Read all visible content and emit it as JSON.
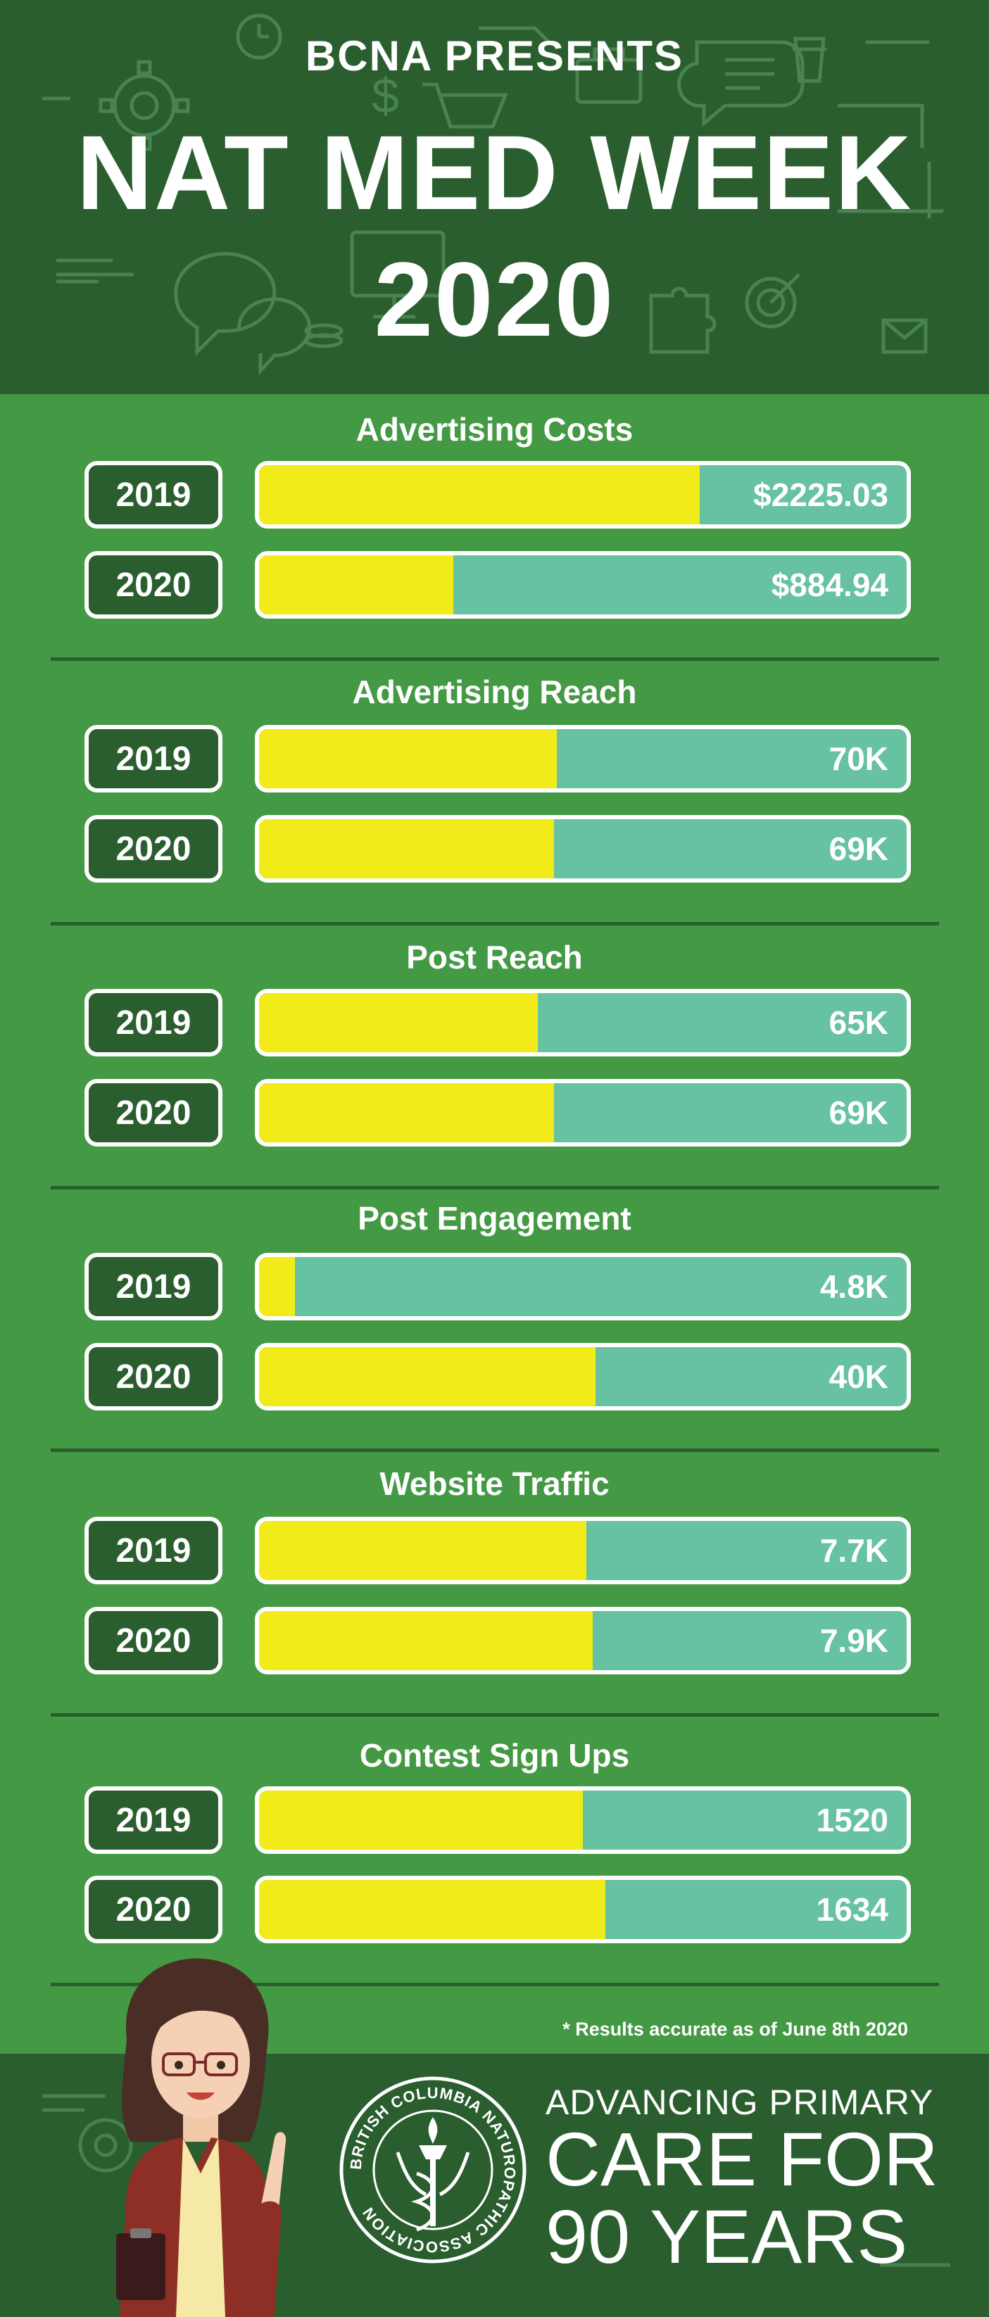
{
  "header": {
    "presents": "BCNA PRESENTS",
    "title_line1": "NAT MED WEEK",
    "title_line2": "2020"
  },
  "colors": {
    "background": "#449944",
    "dark_green": "#2a5e2f",
    "bar_fill_yellow": "#f2eb1a",
    "bar_track_teal": "#66c2a0"
  },
  "sections": [
    {
      "title": "Advertising Costs",
      "rows": [
        {
          "year": "2019",
          "label": "$2225.03",
          "fill": 0.68
        },
        {
          "year": "2020",
          "label": "$884.94",
          "fill": 0.3
        }
      ]
    },
    {
      "title": "Advertising Reach",
      "rows": [
        {
          "year": "2019",
          "label": "70K",
          "fill": 0.46
        },
        {
          "year": "2020",
          "label": "69K",
          "fill": 0.455
        }
      ]
    },
    {
      "title": "Post Reach",
      "rows": [
        {
          "year": "2019",
          "label": "65K",
          "fill": 0.43
        },
        {
          "year": "2020",
          "label": "69K",
          "fill": 0.455
        }
      ]
    },
    {
      "title": "Post Engagement",
      "rows": [
        {
          "year": "2019",
          "label": "4.8K",
          "fill": 0.055
        },
        {
          "year": "2020",
          "label": "40K",
          "fill": 0.52
        }
      ]
    },
    {
      "title": "Website Traffic",
      "rows": [
        {
          "year": "2019",
          "label": "7.7K",
          "fill": 0.505
        },
        {
          "year": "2020",
          "label": "7.9K",
          "fill": 0.515
        }
      ]
    },
    {
      "title": "Contest Sign Ups",
      "rows": [
        {
          "year": "2019",
          "label": "1520",
          "fill": 0.5
        },
        {
          "year": "2020",
          "label": "1634",
          "fill": 0.535
        }
      ]
    }
  ],
  "chart_data": {
    "type": "bar",
    "categories": [
      "Advertising Costs",
      "Advertising Reach",
      "Post Reach",
      "Post Engagement",
      "Website Traffic",
      "Contest Sign Ups"
    ],
    "series": [
      {
        "name": "2019",
        "values": [
          2225.03,
          70000,
          65000,
          4800,
          7700,
          1520
        ]
      },
      {
        "name": "2020",
        "values": [
          884.94,
          69000,
          69000,
          40000,
          7900,
          1634
        ]
      }
    ],
    "title": "NAT MED WEEK 2020"
  },
  "footnote": "* Results accurate as of June 8th 2020",
  "footer": {
    "seal_text": "BRITISH COLUMBIA NATUROPATHIC ASSOCIATION",
    "tagline_line1": "ADVANCING PRIMARY",
    "tagline_line2": "CARE FOR",
    "tagline_line3": "90 YEARS"
  }
}
